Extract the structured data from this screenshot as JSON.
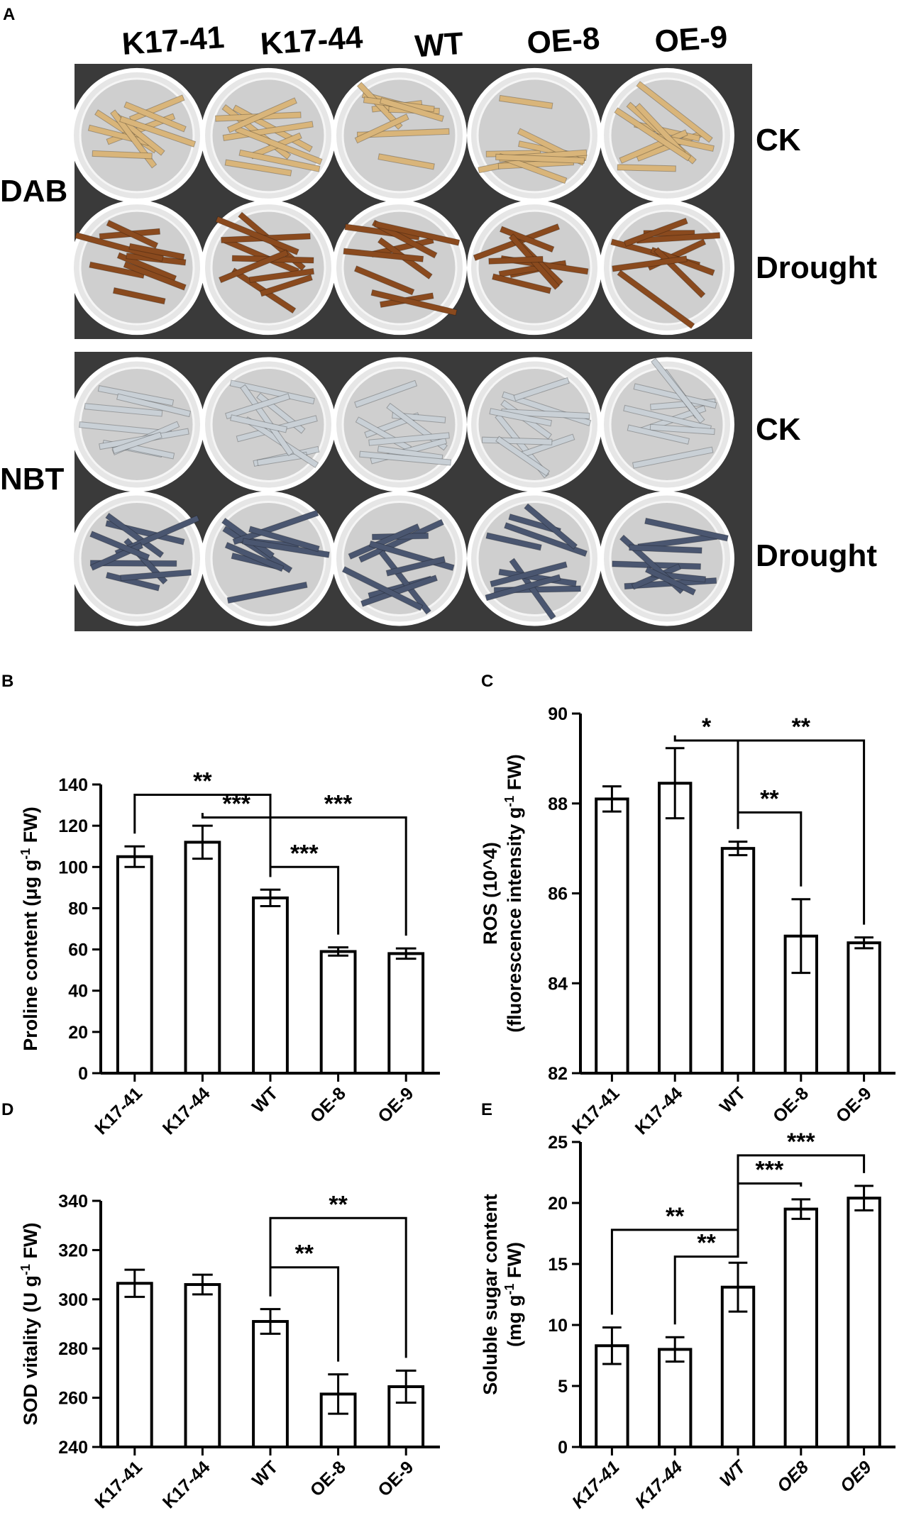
{
  "panel_a": {
    "letter": "A",
    "genotypes": [
      "K17-41",
      "K17-44",
      "WT",
      "OE-8",
      "OE-9"
    ],
    "stains": [
      {
        "name": "DAB",
        "conditions": [
          "CK",
          "Drought"
        ],
        "colors": {
          "CK": "#d9b57a",
          "Drought": "#8a4a1e"
        }
      },
      {
        "name": "NBT",
        "conditions": [
          "CK",
          "Drought"
        ],
        "colors": {
          "CK": "#c9d0d6",
          "Drought": "#4a5670"
        }
      }
    ],
    "background_color": "#3a3a3a"
  },
  "chart_data": [
    {
      "id": "B",
      "type": "bar",
      "letter": "B",
      "categories": [
        "K17-41",
        "K17-44",
        "WT",
        "OE-8",
        "OE-9"
      ],
      "values": [
        105,
        112,
        85,
        59,
        58
      ],
      "errors": [
        5,
        8,
        4,
        2,
        2.5
      ],
      "ylabel_parts": [
        "Proline content (μg g",
        "-1",
        " FW)"
      ],
      "ylim": [
        0,
        140
      ],
      "yticks": [
        "0",
        "20",
        "40",
        "60",
        "80",
        "100",
        "120",
        "140"
      ],
      "ytick_values": [
        0,
        20,
        40,
        60,
        80,
        100,
        120,
        140
      ],
      "xtick_style": "normal",
      "significance": [
        {
          "from": 0,
          "to": 2,
          "label": "**",
          "level": 135
        },
        {
          "from": 1,
          "to": 2,
          "label": "***",
          "level": 124
        },
        {
          "from": 2,
          "to": 4,
          "label": "***",
          "level": 124
        },
        {
          "from": 2,
          "to": 3,
          "label": "***",
          "level": 100
        }
      ]
    },
    {
      "id": "C",
      "type": "bar",
      "letter": "C",
      "categories": [
        "K17-41",
        "K17-44",
        "WT",
        "OE-8",
        "OE-9"
      ],
      "values": [
        88.1,
        88.45,
        87.0,
        85.05,
        84.9
      ],
      "errors": [
        0.28,
        0.78,
        0.15,
        0.82,
        0.12
      ],
      "ylabel_lines": [
        "ROS (10^4)",
        "(fluorescence intensity g",
        "-1",
        " FW)"
      ],
      "ylim": [
        82,
        90
      ],
      "yticks": [
        "82",
        "84",
        "86",
        "88",
        "90"
      ],
      "ytick_values": [
        82,
        84,
        86,
        88,
        90
      ],
      "xtick_style": "normal",
      "significance": [
        {
          "from": 1,
          "to": 2,
          "label": "*",
          "level": 89.4
        },
        {
          "from": 2,
          "to": 4,
          "label": "**",
          "level": 89.4
        },
        {
          "from": 2,
          "to": 3,
          "label": "**",
          "level": 87.8
        }
      ]
    },
    {
      "id": "D",
      "type": "bar",
      "letter": "D",
      "categories": [
        "K17-41",
        "K17-44",
        "WT",
        "OE-8",
        "OE-9"
      ],
      "values": [
        306.5,
        306,
        291,
        261.5,
        264.5
      ],
      "errors": [
        5.5,
        4,
        5,
        8,
        6.5
      ],
      "ylabel_parts": [
        "SOD vitality (U g",
        "-1",
        " FW)"
      ],
      "ylim": [
        240,
        340
      ],
      "yticks": [
        "240",
        "260",
        "280",
        "300",
        "320",
        "340"
      ],
      "ytick_values": [
        240,
        260,
        280,
        300,
        320,
        340
      ],
      "xtick_style": "normal",
      "significance": [
        {
          "from": 2,
          "to": 4,
          "label": "**",
          "level": 333
        },
        {
          "from": 2,
          "to": 3,
          "label": "**",
          "level": 313
        }
      ]
    },
    {
      "id": "E",
      "type": "bar",
      "letter": "E",
      "categories": [
        "K17-41",
        "K17-44",
        "WT",
        "OE8",
        "OE9"
      ],
      "values": [
        8.3,
        8.0,
        13.1,
        19.5,
        20.4
      ],
      "errors": [
        1.5,
        1.0,
        2.0,
        0.8,
        1.0
      ],
      "ylabel_lines": [
        "Soluble sugar content",
        "(mg g",
        "-1",
        " FW)"
      ],
      "ylim": [
        0,
        25
      ],
      "yticks": [
        "0",
        "5",
        "10",
        "15",
        "20",
        "25"
      ],
      "ytick_values": [
        0,
        5,
        10,
        15,
        20,
        25
      ],
      "xtick_style": "italic",
      "significance": [
        {
          "from": 2,
          "to": 4,
          "label": "***",
          "level": 23.9
        },
        {
          "from": 2,
          "to": 3,
          "label": "***",
          "level": 21.6
        },
        {
          "from": 0,
          "to": 2,
          "label": "**",
          "level": 17.8
        },
        {
          "from": 1,
          "to": 2,
          "label": "**",
          "level": 15.6
        }
      ]
    }
  ]
}
